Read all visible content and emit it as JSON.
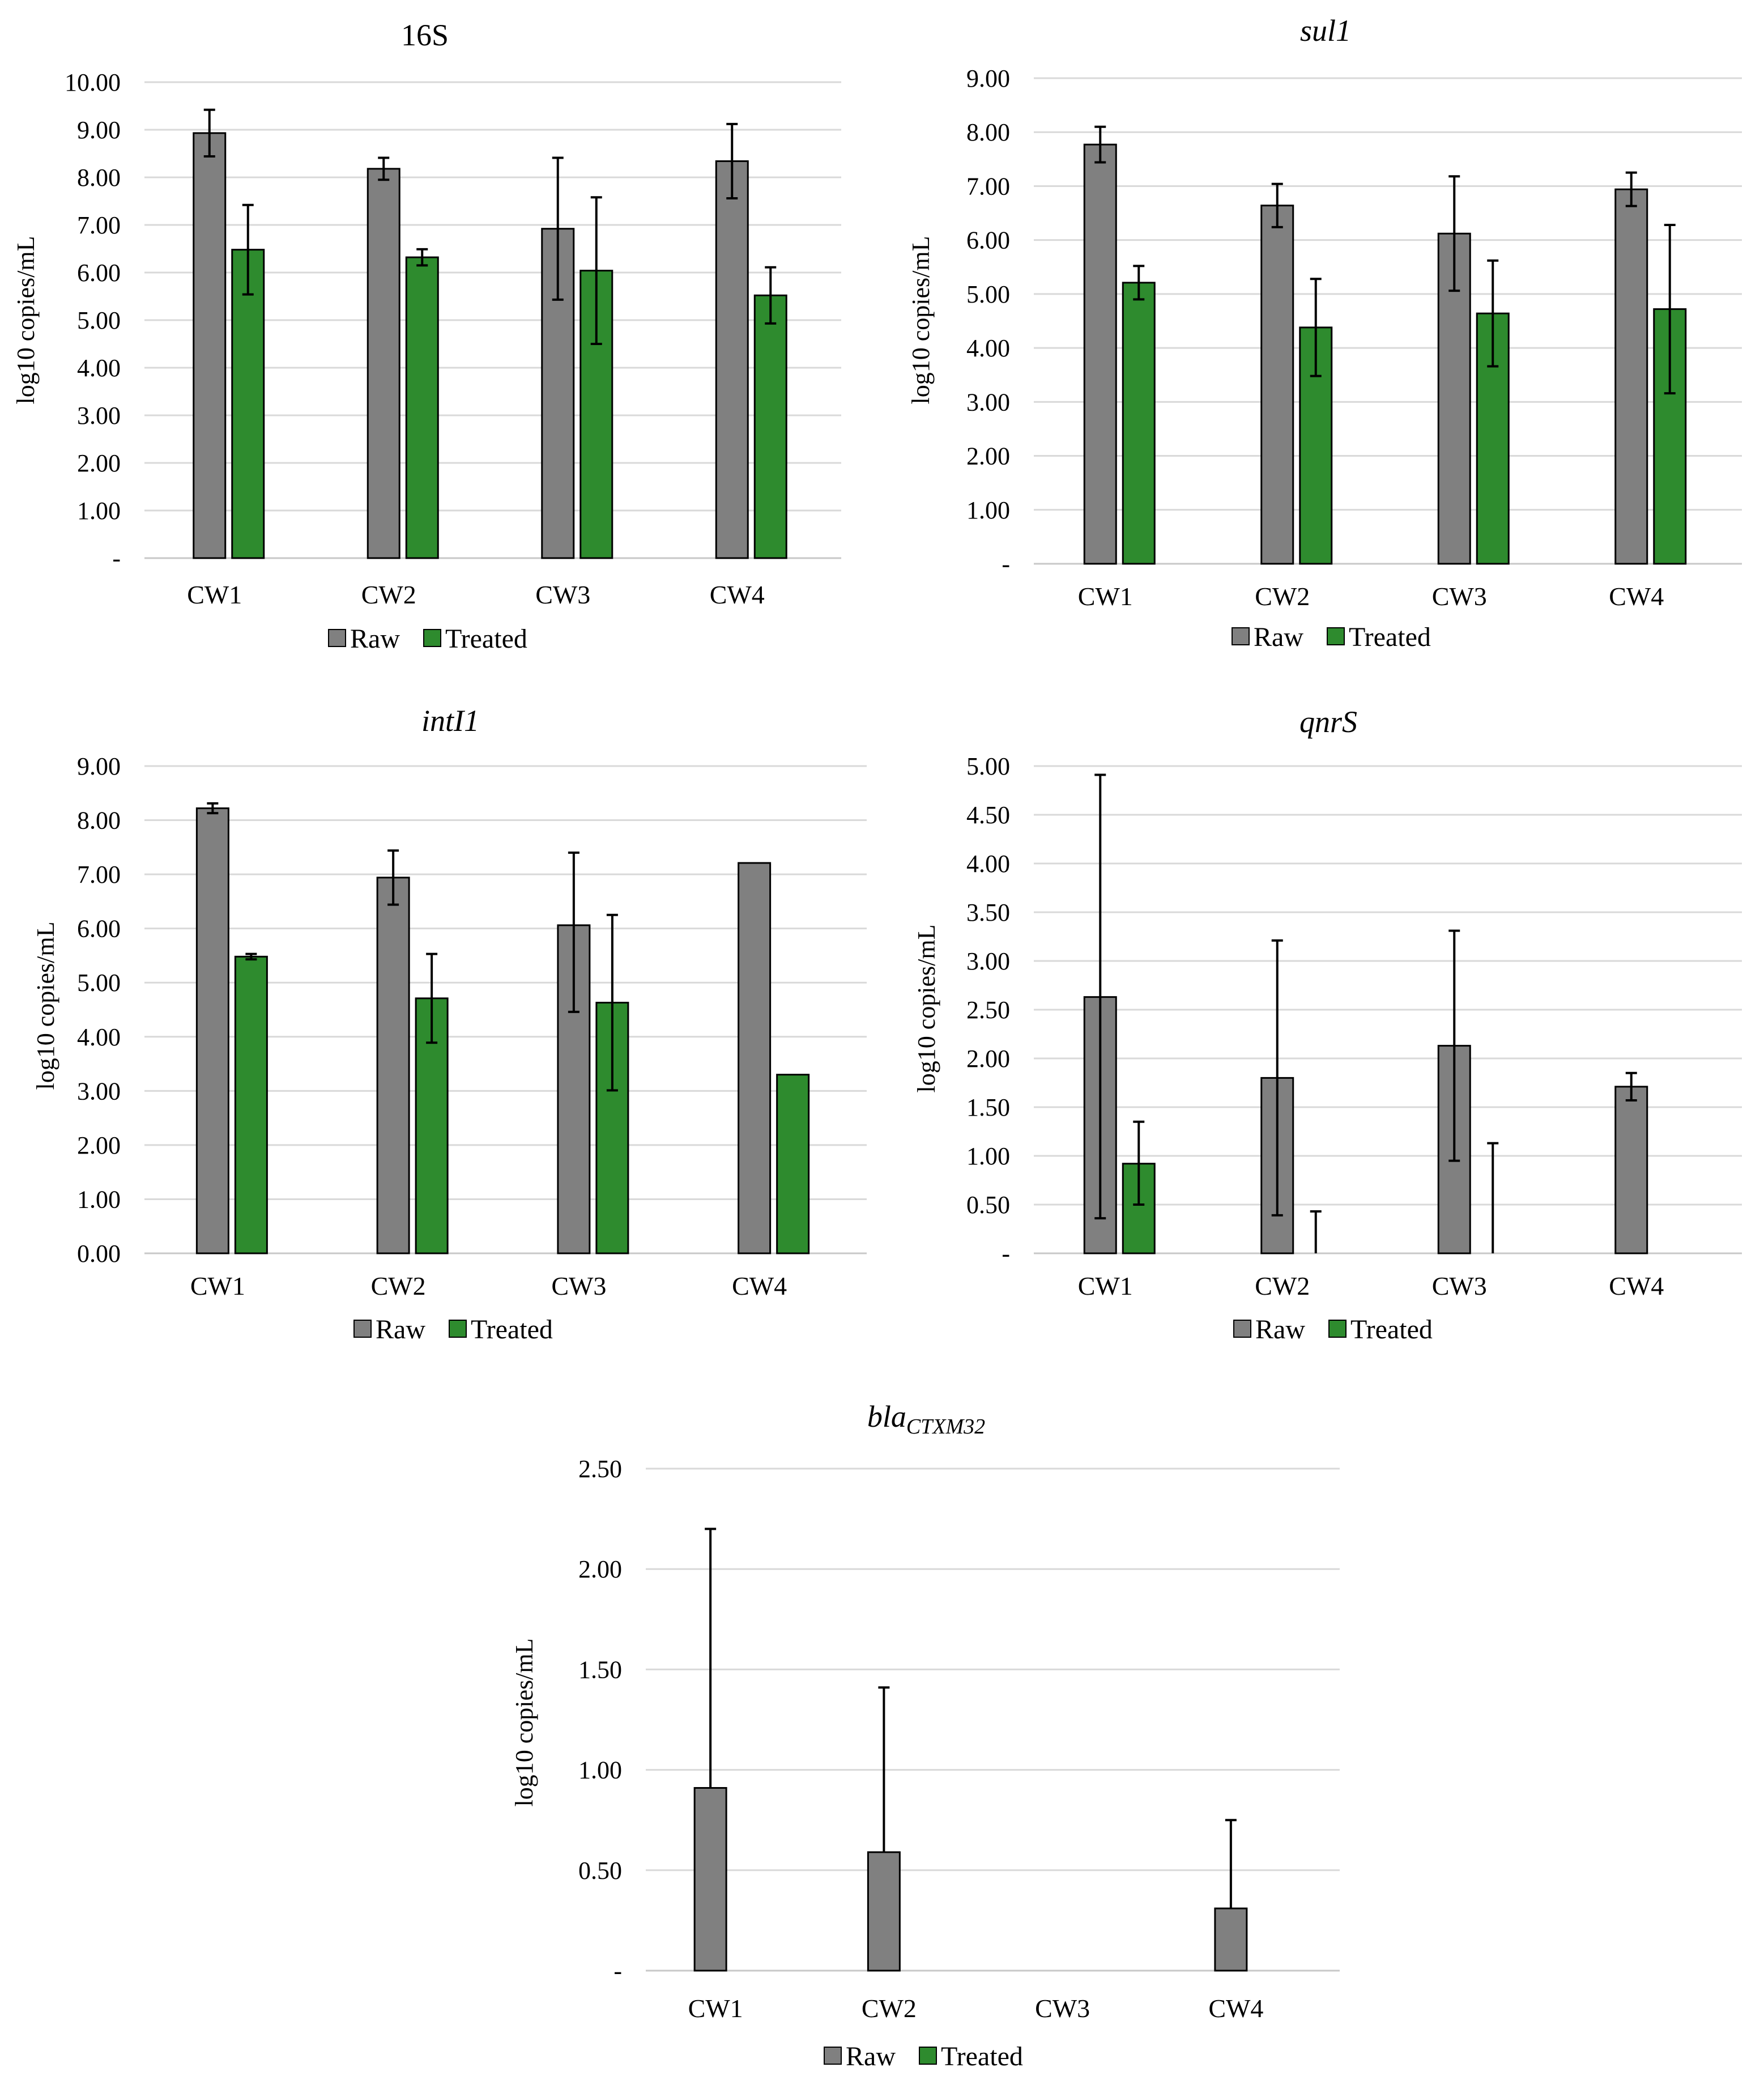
{
  "colors": {
    "raw": "#808080",
    "treated": "#2e8b2e"
  },
  "legend": [
    "Raw",
    "Treated"
  ],
  "chart_data": [
    {
      "type": "bar",
      "title": "16S",
      "title_italic": false,
      "ylabel": "log10 copies/mL",
      "ylim": [
        0,
        10
      ],
      "yticks": [
        "-",
        "1.00",
        "2.00",
        "3.00",
        "4.00",
        "5.00",
        "6.00",
        "7.00",
        "8.00",
        "9.00",
        "10.00"
      ],
      "categories": [
        "CW1",
        "CW2",
        "CW3",
        "CW4"
      ],
      "series": [
        {
          "name": "Raw",
          "values": [
            8.93,
            8.18,
            6.92,
            8.34
          ],
          "err_high": [
            9.42,
            8.41,
            8.41,
            9.12
          ],
          "err_low": [
            8.44,
            7.95,
            5.43,
            7.56
          ]
        },
        {
          "name": "Treated",
          "values": [
            6.48,
            6.32,
            6.04,
            5.52
          ],
          "err_high": [
            7.42,
            6.49,
            7.58,
            6.11
          ],
          "err_low": [
            5.54,
            6.15,
            4.5,
            4.93
          ]
        }
      ]
    },
    {
      "type": "bar",
      "title": "sul1",
      "title_italic": true,
      "ylabel": "log10 copies/mL",
      "ylim": [
        0,
        9
      ],
      "yticks": [
        "-",
        "1.00",
        "2.00",
        "3.00",
        "4.00",
        "5.00",
        "6.00",
        "7.00",
        "8.00",
        "9.00"
      ],
      "categories": [
        "CW1",
        "CW2",
        "CW3",
        "CW4"
      ],
      "series": [
        {
          "name": "Raw",
          "values": [
            7.77,
            6.64,
            6.12,
            6.94
          ],
          "err_high": [
            8.1,
            7.04,
            7.18,
            7.25
          ],
          "err_low": [
            7.44,
            6.24,
            5.06,
            6.63
          ]
        },
        {
          "name": "Treated",
          "values": [
            5.21,
            4.38,
            4.64,
            4.72
          ],
          "err_high": [
            5.52,
            5.28,
            5.62,
            6.28
          ],
          "err_low": [
            4.9,
            3.48,
            3.66,
            3.16
          ]
        }
      ]
    },
    {
      "type": "bar",
      "title": "intI1",
      "title_italic": true,
      "ylabel": "log10 copies/mL",
      "ylim": [
        0,
        9
      ],
      "yticks": [
        "0.00",
        "1.00",
        "2.00",
        "3.00",
        "4.00",
        "5.00",
        "6.00",
        "7.00",
        "8.00",
        "9.00"
      ],
      "categories": [
        "CW1",
        "CW2",
        "CW3",
        "CW4"
      ],
      "series": [
        {
          "name": "Raw",
          "values": [
            8.22,
            6.94,
            6.06,
            7.21
          ],
          "err_high": [
            8.31,
            7.44,
            7.4,
            null
          ],
          "err_low": [
            8.13,
            6.44,
            4.46,
            null
          ]
        },
        {
          "name": "Treated",
          "values": [
            5.48,
            4.71,
            4.63,
            3.3
          ],
          "err_high": [
            5.53,
            5.53,
            6.25,
            null
          ],
          "err_low": [
            5.43,
            3.89,
            3.01,
            null
          ]
        }
      ]
    },
    {
      "type": "bar",
      "title": "qnrS",
      "title_italic": true,
      "ylabel": "log10 copies/mL",
      "ylim": [
        0,
        5
      ],
      "yticks": [
        "-",
        "0.50",
        "1.00",
        "1.50",
        "2.00",
        "2.50",
        "3.00",
        "3.50",
        "4.00",
        "4.50",
        "5.00"
      ],
      "categories": [
        "CW1",
        "CW2",
        "CW3",
        "CW4"
      ],
      "series": [
        {
          "name": "Raw",
          "values": [
            2.63,
            1.8,
            2.13,
            1.71
          ],
          "err_high": [
            4.91,
            3.21,
            3.31,
            1.85
          ],
          "err_low": [
            0.36,
            0.39,
            0.95,
            1.57
          ]
        },
        {
          "name": "Treated",
          "values": [
            0.92,
            0,
            0,
            0
          ],
          "err_high": [
            1.35,
            0.43,
            1.13,
            null
          ],
          "err_low": [
            0.5,
            null,
            null,
            null
          ]
        }
      ]
    },
    {
      "type": "bar",
      "title": "bla",
      "title_sub": "CTXM32",
      "title_italic": true,
      "ylabel": "log10 copies/mL",
      "ylim": [
        0,
        2.5
      ],
      "yticks": [
        "-",
        "0.50",
        "1.00",
        "1.50",
        "2.00",
        "2.50"
      ],
      "categories": [
        "CW1",
        "CW2",
        "CW3",
        "CW4"
      ],
      "series": [
        {
          "name": "Raw",
          "values": [
            0.91,
            0.59,
            0,
            0.31
          ],
          "err_high": [
            2.2,
            1.41,
            null,
            0.75
          ],
          "err_low": [
            null,
            null,
            null,
            null
          ]
        },
        {
          "name": "Treated",
          "values": [
            0,
            0,
            0,
            0
          ],
          "err_high": [
            null,
            null,
            null,
            null
          ],
          "err_low": [
            null,
            null,
            null,
            null
          ]
        }
      ]
    }
  ]
}
